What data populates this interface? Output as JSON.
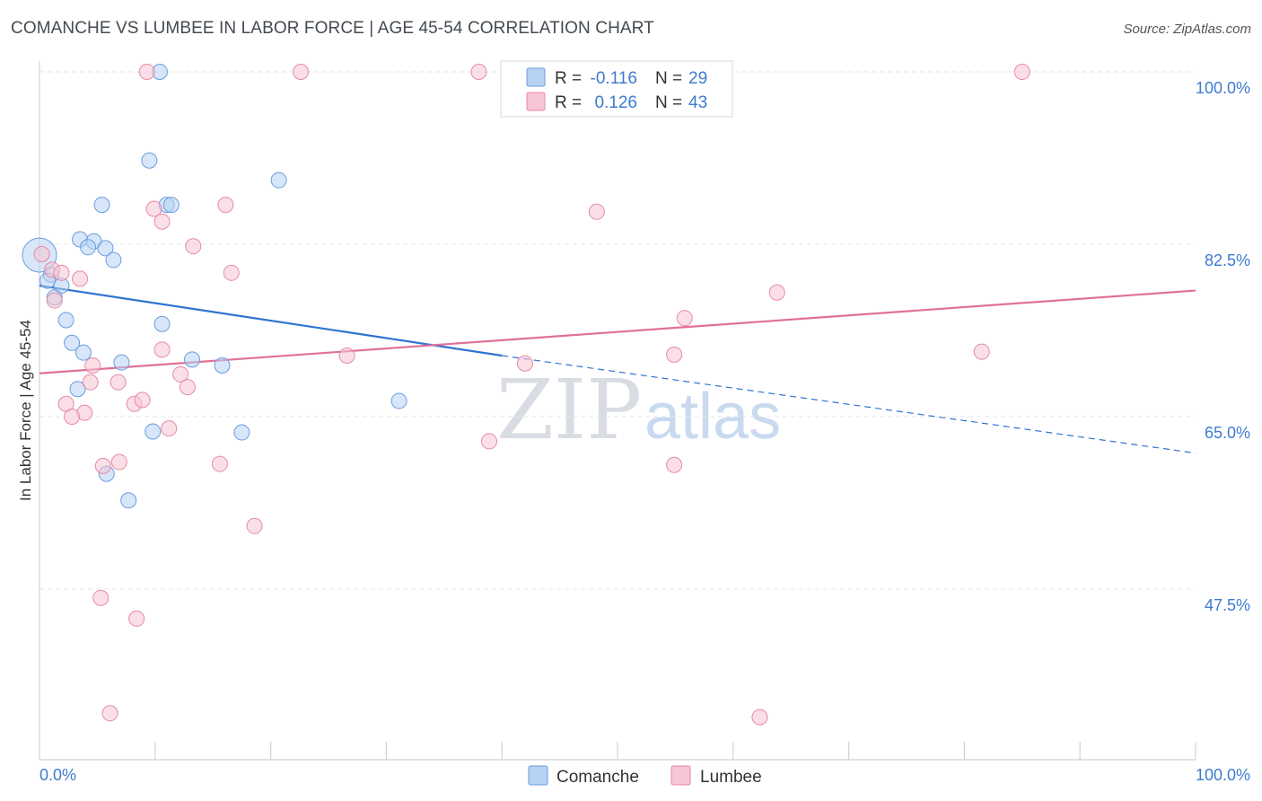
{
  "title": "COMANCHE VS LUMBEE IN LABOR FORCE | AGE 45-54 CORRELATION CHART",
  "source": "Source: ZipAtlas.com",
  "watermark": {
    "part1": "ZIP",
    "part2": "atlas"
  },
  "colors": {
    "comanche_fill": "#b7d1f3",
    "comanche_stroke": "#6a9ee0",
    "comanche_line": "#2f74d0",
    "lumbee_fill": "#f8c5d4",
    "lumbee_stroke": "#e58aa8",
    "lumbee_line": "#e0709a",
    "tick_color": "#3d7bd0"
  },
  "chart_data": {
    "type": "scatter",
    "title": "COMANCHE VS LUMBEE IN LABOR FORCE | AGE 45-54 CORRELATION CHART",
    "xlabel": "",
    "ylabel": "In Labor Force | Age 45-54",
    "xlim": [
      0,
      100
    ],
    "ylim": [
      30,
      101.5
    ],
    "x_tick_labels": [
      {
        "value": 0,
        "label": "0.0%"
      },
      {
        "value": 100,
        "label": "100.0%"
      }
    ],
    "y_ticks": [
      {
        "value": 100.0,
        "label": "100.0%"
      },
      {
        "value": 82.5,
        "label": "82.5%"
      },
      {
        "value": 65.0,
        "label": "65.0%"
      },
      {
        "value": 47.5,
        "label": "47.5%"
      }
    ],
    "legend": [
      {
        "name": "Comanche",
        "r_label": "R =",
        "r_value": "-0.116",
        "n_label": "N =",
        "n_value": "29"
      },
      {
        "name": "Lumbee",
        "r_label": "R =",
        "r_value": "0.126",
        "n_label": "N =",
        "n_value": "43"
      }
    ],
    "series": [
      {
        "name": "Comanche",
        "points": [
          [
            10.4,
            100.0
          ],
          [
            9.5,
            91.0
          ],
          [
            20.7,
            89.0
          ],
          [
            5.4,
            86.5
          ],
          [
            11.0,
            86.5
          ],
          [
            11.4,
            86.5
          ],
          [
            3.5,
            83.0
          ],
          [
            4.7,
            82.8
          ],
          [
            4.2,
            82.2
          ],
          [
            5.7,
            82.1
          ],
          [
            6.4,
            80.9
          ],
          [
            0.0,
            81.4
          ],
          [
            1.0,
            79.4
          ],
          [
            0.7,
            78.8
          ],
          [
            1.9,
            78.3
          ],
          [
            1.3,
            77.1
          ],
          [
            2.3,
            74.8
          ],
          [
            10.6,
            74.4
          ],
          [
            2.8,
            72.5
          ],
          [
            3.8,
            71.5
          ],
          [
            7.1,
            70.5
          ],
          [
            13.2,
            70.8
          ],
          [
            15.8,
            70.2
          ],
          [
            3.3,
            67.8
          ],
          [
            31.1,
            66.6
          ],
          [
            9.8,
            63.5
          ],
          [
            17.5,
            63.4
          ],
          [
            5.8,
            59.2
          ],
          [
            7.7,
            56.5
          ]
        ],
        "trend": {
          "x_start": 0,
          "y_start": 78.3,
          "x_end": 40,
          "y_end": 71.2,
          "dash_x_end": 100,
          "dash_y_end": 61.3
        }
      },
      {
        "name": "Lumbee",
        "points": [
          [
            9.3,
            100.0
          ],
          [
            22.6,
            100.0
          ],
          [
            38.0,
            100.0
          ],
          [
            85.0,
            100.0
          ],
          [
            16.1,
            86.5
          ],
          [
            9.9,
            86.1
          ],
          [
            48.2,
            85.8
          ],
          [
            10.6,
            84.8
          ],
          [
            13.3,
            82.3
          ],
          [
            0.2,
            81.5
          ],
          [
            1.1,
            79.9
          ],
          [
            1.9,
            79.6
          ],
          [
            16.6,
            79.6
          ],
          [
            3.5,
            79.0
          ],
          [
            1.3,
            76.8
          ],
          [
            63.8,
            77.6
          ],
          [
            55.8,
            75.0
          ],
          [
            10.6,
            71.8
          ],
          [
            26.6,
            71.2
          ],
          [
            54.9,
            71.3
          ],
          [
            81.5,
            71.6
          ],
          [
            4.6,
            70.2
          ],
          [
            42.0,
            70.4
          ],
          [
            12.2,
            69.3
          ],
          [
            4.4,
            68.5
          ],
          [
            6.8,
            68.5
          ],
          [
            12.8,
            68.0
          ],
          [
            2.3,
            66.3
          ],
          [
            8.2,
            66.3
          ],
          [
            8.9,
            66.7
          ],
          [
            3.9,
            65.4
          ],
          [
            2.8,
            65.0
          ],
          [
            11.2,
            63.8
          ],
          [
            38.9,
            62.5
          ],
          [
            6.9,
            60.4
          ],
          [
            5.5,
            60.0
          ],
          [
            15.6,
            60.2
          ],
          [
            54.9,
            60.1
          ],
          [
            18.6,
            53.9
          ],
          [
            5.3,
            46.6
          ],
          [
            8.4,
            44.5
          ],
          [
            6.1,
            34.9
          ],
          [
            62.3,
            34.5
          ]
        ],
        "trend": {
          "x_start": 0,
          "y_start": 69.4,
          "x_end": 100,
          "y_end": 77.8
        }
      }
    ]
  }
}
